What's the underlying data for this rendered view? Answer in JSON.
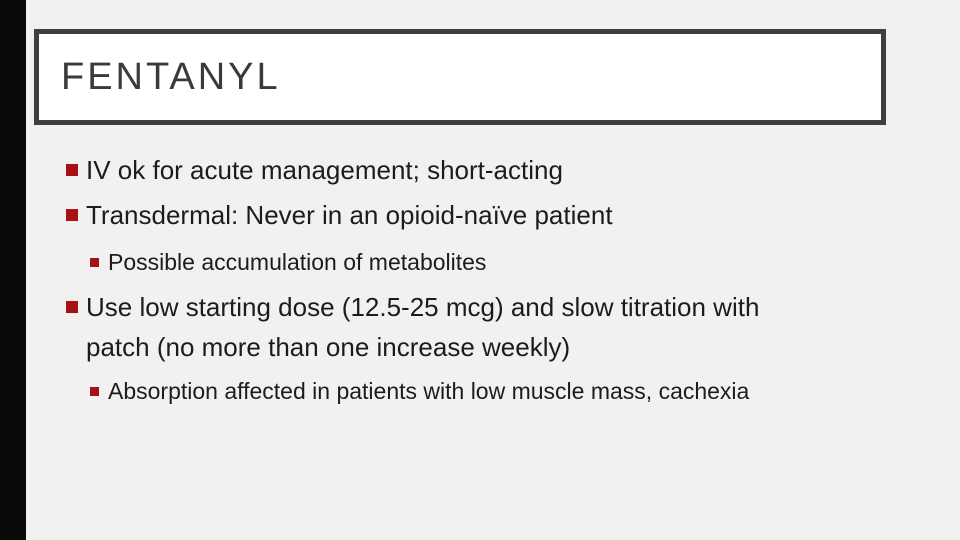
{
  "slide": {
    "title": "FENTANYL",
    "bullets": [
      {
        "level": 1,
        "lines": [
          "IV ok for acute management; short-acting"
        ]
      },
      {
        "level": 1,
        "lines": [
          "Transdermal: Never in an opioid-naïve patient"
        ]
      },
      {
        "level": 2,
        "lines": [
          "Possible accumulation of metabolites"
        ]
      },
      {
        "level": 1,
        "lines": [
          "Use low starting dose (12.5-25 mcg) and slow titration with",
          "patch (no more than one increase weekly)"
        ]
      },
      {
        "level": 2,
        "lines": [
          "Absorption affected in patients with low muscle mass, cachexia"
        ]
      }
    ],
    "colors": {
      "accent_red": "#A81113",
      "bar_black": "#0A0A0A",
      "border_gray": "#3E3E40",
      "title_gray": "#3A3A3A",
      "body_text": "#1C1C1C",
      "background": "#F1F1F2",
      "box_fill": "#FFFFFF"
    }
  }
}
